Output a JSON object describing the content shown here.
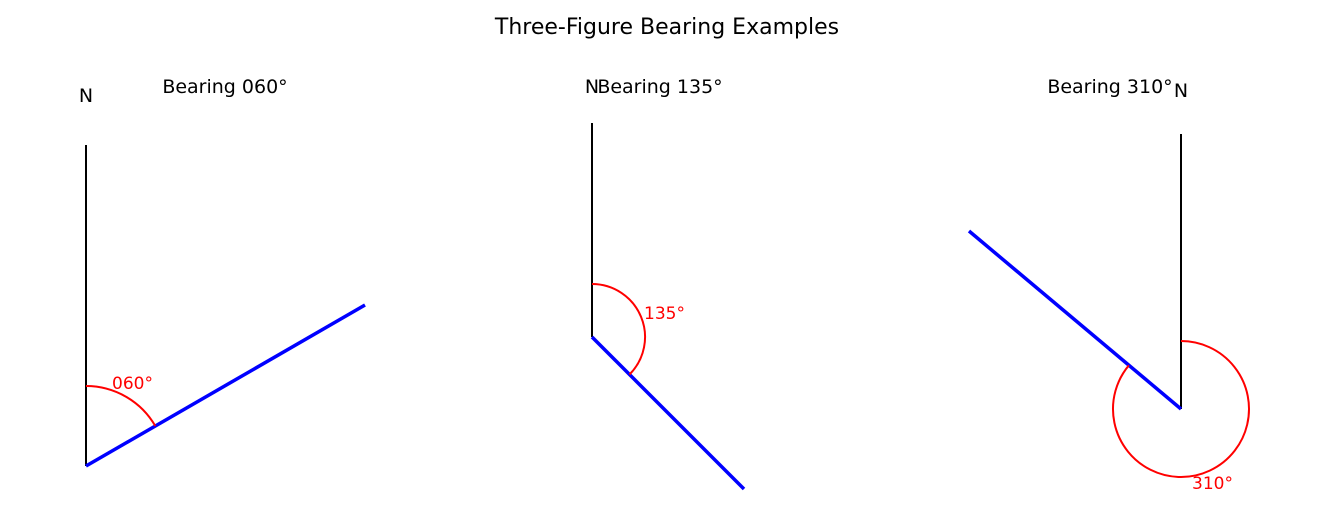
{
  "figure": {
    "title": "Three-Figure Bearing Examples"
  },
  "colors": {
    "north_line": "#000000",
    "bearing_line": "#0000ff",
    "angle_arc": "#ff0000"
  },
  "panels": [
    {
      "subtitle": "Bearing 060°",
      "north_label": "N",
      "angle_label": "060°",
      "bearing_degrees": 60
    },
    {
      "subtitle": "Bearing 135°",
      "north_label": "N",
      "angle_label": "135°",
      "bearing_degrees": 135
    },
    {
      "subtitle": "Bearing 310°",
      "north_label": "N",
      "angle_label": "310°",
      "bearing_degrees": 310
    }
  ]
}
